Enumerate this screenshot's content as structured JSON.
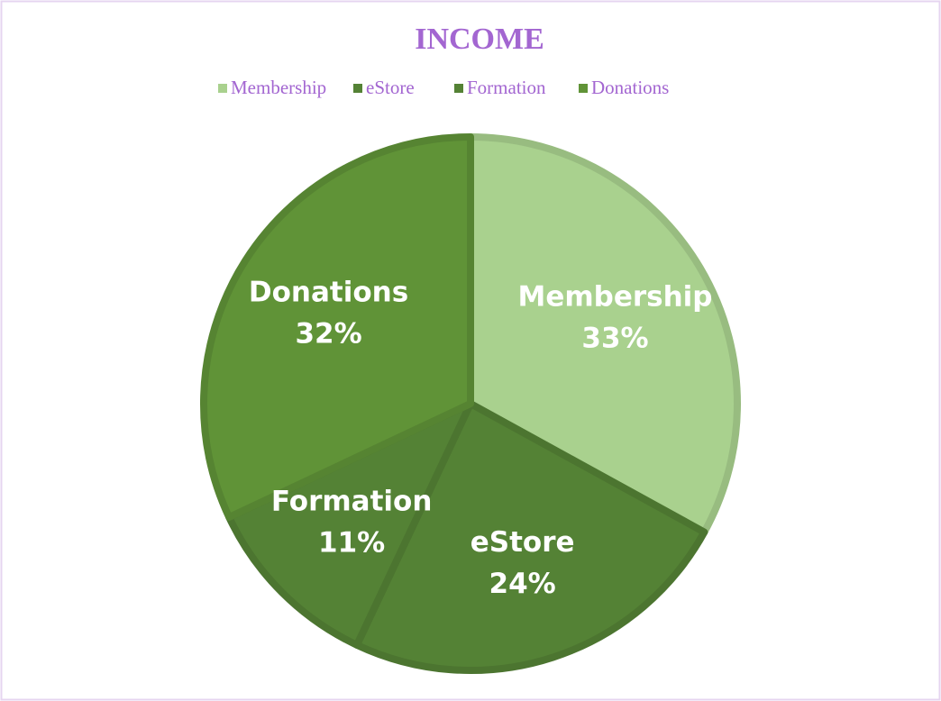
{
  "chart_data": {
    "type": "pie",
    "title": "INCOME",
    "categories": [
      "Membership",
      "eStore",
      "Formation",
      "Donations"
    ],
    "values": [
      33,
      24,
      11,
      32
    ],
    "value_labels": [
      "33%",
      "24%",
      "11%",
      "32%"
    ],
    "colors": [
      "#a9d18e",
      "#548235",
      "#548235",
      "#609337"
    ],
    "legend": "top"
  }
}
